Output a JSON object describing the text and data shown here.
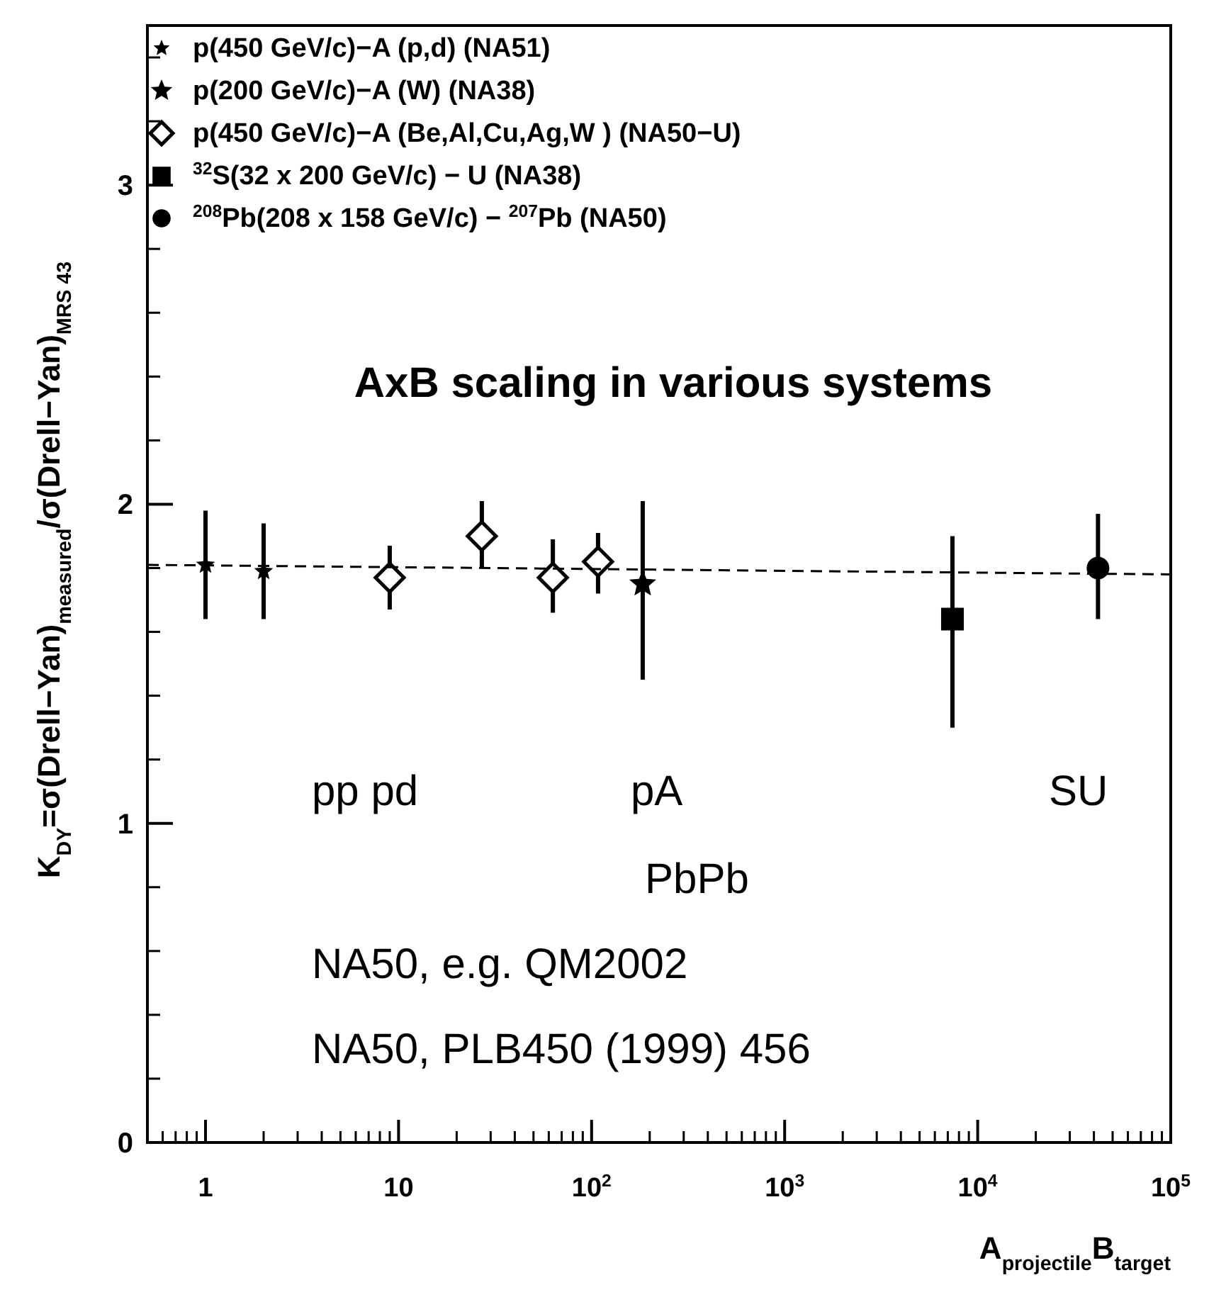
{
  "chart_data": {
    "type": "scatter",
    "title": "AxB scaling in various systems",
    "xlabel": "A$_{projectile}$B$_{target}$",
    "ylabel": "K$_{DY}$=σ(Drell−Yan)$_{measured}$/σ(Drell−Yan)$_{MRS 43}$",
    "log": "x",
    "xlim": [
      0.5,
      100000
    ],
    "ylim": [
      0,
      3.5
    ],
    "xticks": [
      1,
      10,
      {
        "value": 100,
        "label": "10$^{2}$"
      },
      {
        "value": 1000,
        "label": "10$^{3}$"
      },
      {
        "value": 10000,
        "label": "10$^{4}$"
      },
      {
        "value": 100000,
        "label": "10$^{5}$"
      }
    ],
    "yticks": [
      0,
      1,
      2,
      3
    ],
    "grid": false,
    "legend": "top left",
    "series": [
      {
        "name": "p(450 GeV/c)−A (p,d) (NA51)",
        "color": "#000000",
        "marker": "star",
        "x": [
          1,
          2
        ],
        "values": [
          1.81,
          1.79
        ],
        "errors": [
          [
            1.64,
            1.98
          ],
          [
            1.64,
            1.94
          ]
        ]
      },
      {
        "name": "p(200 GeV/c)−A (W) (NA38)",
        "color": "#000000",
        "marker": "star",
        "x": [
          184
        ],
        "values": [
          1.75
        ],
        "errors": [
          [
            1.45,
            2.01
          ]
        ]
      },
      {
        "name": "p(450 GeV/c)−A (Be,Al,Cu,Ag,W ) (NA50−U)",
        "color": "#000000",
        "marker": "diamond",
        "x": [
          9,
          27,
          63,
          108
        ],
        "values": [
          1.77,
          1.9,
          1.77,
          1.82
        ],
        "errors": [
          [
            1.67,
            1.87
          ],
          [
            1.8,
            2.01
          ],
          [
            1.66,
            1.89
          ],
          [
            1.72,
            1.91
          ]
        ]
      },
      {
        "name": "$^{32}$S(32 x 200 GeV/c) − U (NA38)",
        "color": "#000000",
        "marker": "square",
        "x": [
          7400
        ],
        "values": [
          1.64
        ],
        "errors": [
          [
            1.3,
            1.9
          ]
        ]
      },
      {
        "name": "$^{208}$Pb(208 x 158 GeV/c) − $^{207}$Pb (NA50)",
        "color": "#000000",
        "marker": "circle",
        "x": [
          42000
        ],
        "values": [
          1.8
        ],
        "errors": [
          [
            1.64,
            1.97
          ]
        ]
      },
      {
        "type": "line",
        "color": "#000000",
        "marker": "none",
        "line_style": "dashed",
        "x": [
          0.5,
          100000
        ],
        "values": [
          1.81,
          1.78
        ]
      }
    ],
    "annotations": [
      "pp pd",
      "pA",
      "SU",
      "PbPb",
      "NA50, e.g. QM2002",
      "NA50, PLB450 (1999) 456"
    ]
  }
}
